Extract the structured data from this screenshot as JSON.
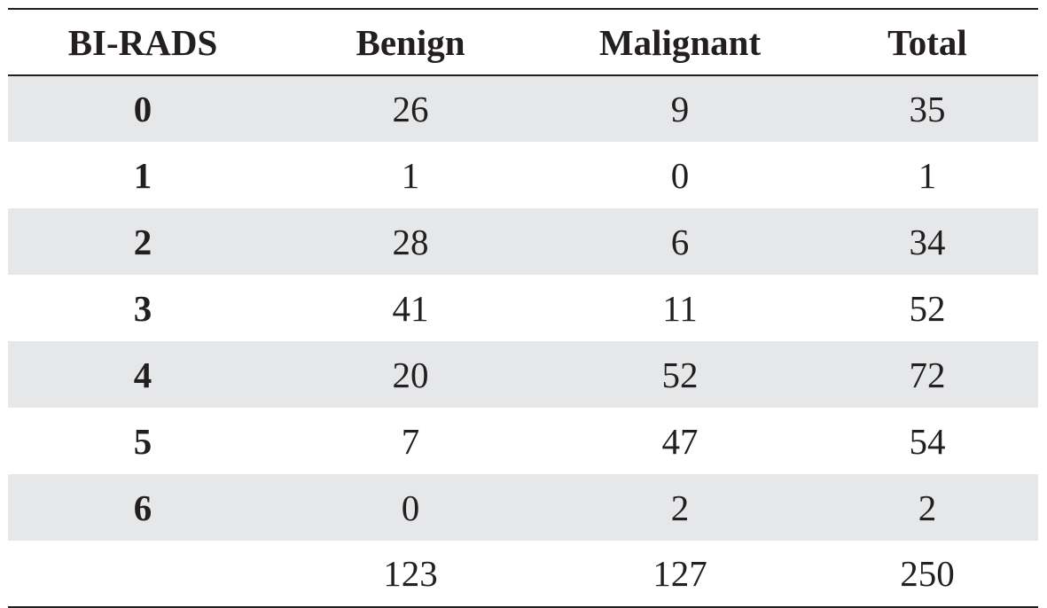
{
  "table": {
    "headers": [
      "BI-RADS",
      "Benign",
      "Malignant",
      "Total"
    ],
    "rows": [
      [
        "0",
        "26",
        "9",
        "35"
      ],
      [
        "1",
        "1",
        "0",
        "1"
      ],
      [
        "2",
        "28",
        "6",
        "34"
      ],
      [
        "3",
        "41",
        "11",
        "52"
      ],
      [
        "4",
        "20",
        "52",
        "72"
      ],
      [
        "5",
        "7",
        "47",
        "54"
      ],
      [
        "6",
        "0",
        "2",
        "2"
      ]
    ],
    "totals": [
      "",
      "123",
      "127",
      "250"
    ]
  },
  "colors": {
    "text": "#231f20",
    "row_shade": "#e6e7e8"
  }
}
